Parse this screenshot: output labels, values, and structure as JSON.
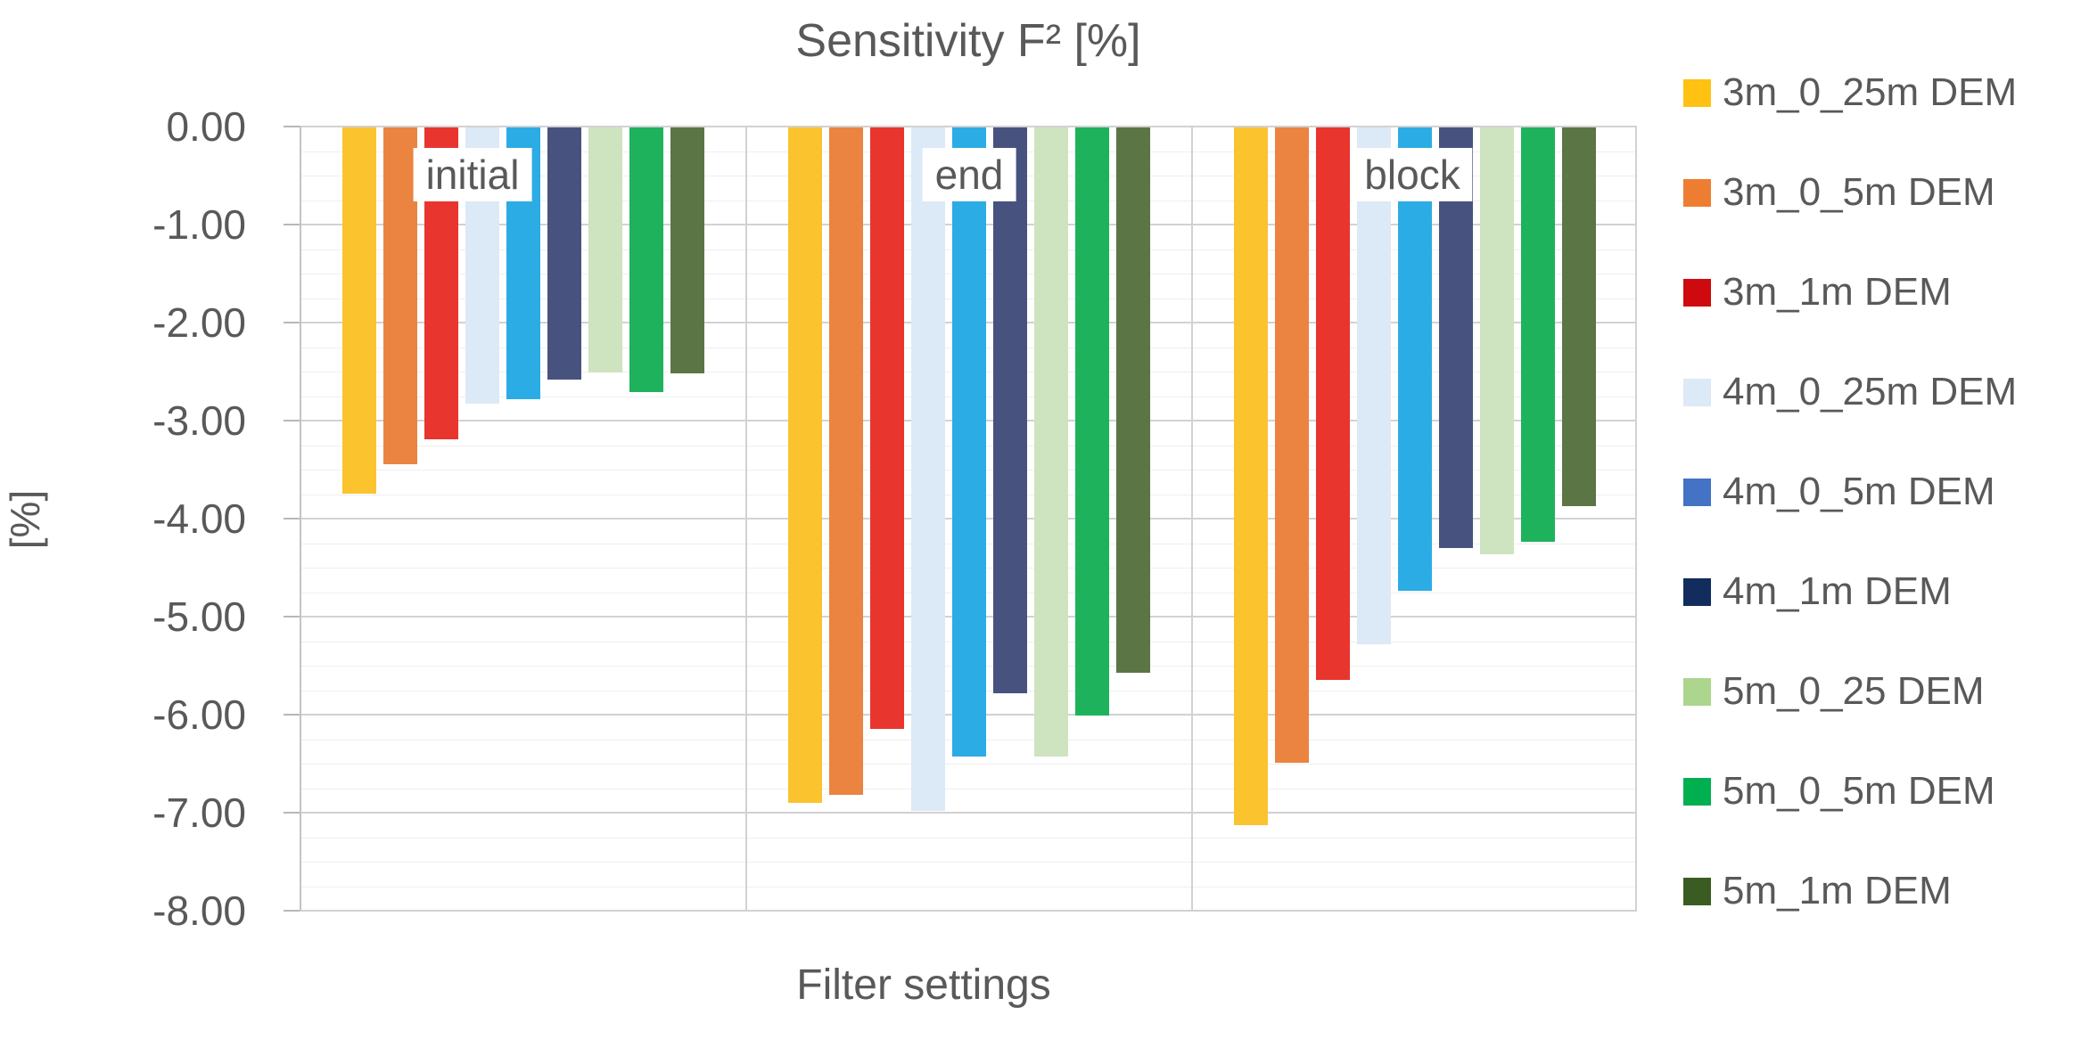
{
  "title": "Sensitivity F² [%]",
  "x_axis_title": "Filter settings",
  "y_axis_title": "[%]",
  "colors": {
    "text": "#595959",
    "grid_major": "#d2d2d2",
    "grid_minor": "#efefef",
    "background": "#ffffff"
  },
  "chart_data": {
    "type": "bar",
    "title": "Sensitivity F² [%]",
    "xlabel": "Filter settings",
    "ylabel": "[%]",
    "ylim": [
      -8,
      0
    ],
    "y_tick_step": 1,
    "y_minor_step": 0.25,
    "grid": true,
    "legend_position": "right",
    "y_tick_labels": [
      "0.00",
      "-1.00",
      "-2.00",
      "-3.00",
      "-4.00",
      "-5.00",
      "-6.00",
      "-7.00",
      "-8.00"
    ],
    "categories": [
      "initial",
      "end",
      "block"
    ],
    "series": [
      {
        "name": "3m_0_25m DEM",
        "bar_color": "#fbc32e",
        "legend_color": "#ffc112",
        "values": [
          -3.74,
          -6.89,
          -7.12
        ]
      },
      {
        "name": "3m_0_5m DEM",
        "bar_color": "#ea8440",
        "legend_color": "#ed7d31",
        "values": [
          -3.44,
          -6.81,
          -6.48
        ]
      },
      {
        "name": "3m_1m DEM",
        "bar_color": "#e8352e",
        "legend_color": "#cf0a0f",
        "values": [
          -3.18,
          -6.14,
          -5.64
        ]
      },
      {
        "name": "4m_0_25m DEM",
        "bar_color": "#dce9f6",
        "legend_color": "#dce9f6",
        "values": [
          -2.82,
          -6.97,
          -5.27
        ]
      },
      {
        "name": "4m_0_5m DEM",
        "bar_color": "#2cace4",
        "legend_color": "#4472c4",
        "values": [
          -2.77,
          -6.42,
          -4.73
        ]
      },
      {
        "name": "4m_1m DEM",
        "bar_color": "#47537e",
        "legend_color": "#122c5e",
        "values": [
          -2.57,
          -5.77,
          -4.29
        ]
      },
      {
        "name": "5m_0_25 DEM",
        "bar_color": "#cee3bf",
        "legend_color": "#acd58e",
        "values": [
          -2.5,
          -6.42,
          -4.35
        ]
      },
      {
        "name": "5m_0_5m DEM",
        "bar_color": "#1fb25c",
        "legend_color": "#00b050",
        "values": [
          -2.7,
          -6.0,
          -4.23
        ]
      },
      {
        "name": "5m_1m DEM",
        "bar_color": "#5c7544",
        "legend_color": "#3a5b22",
        "values": [
          -2.51,
          -5.56,
          -3.86
        ]
      }
    ]
  }
}
